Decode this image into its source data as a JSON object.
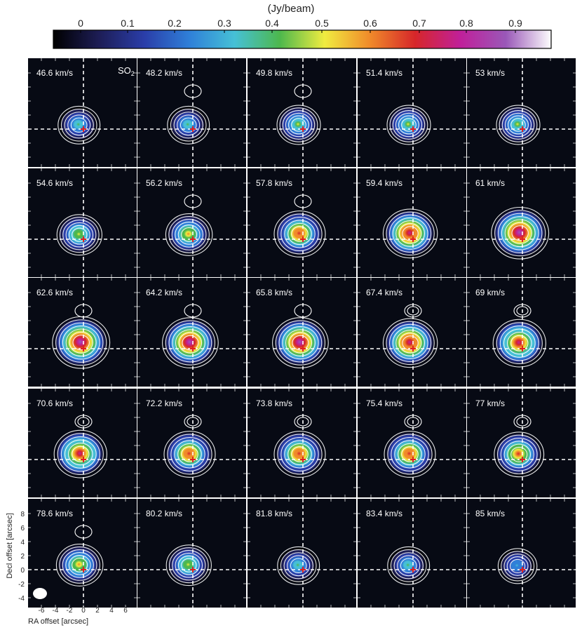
{
  "colorbar": {
    "title": "(Jy/beam)",
    "ticks": [
      "0",
      "0.1",
      "0.2",
      "0.3",
      "0.4",
      "0.5",
      "0.6",
      "0.7",
      "0.8",
      "0.9"
    ],
    "colors": [
      "#000000",
      "#1d1d55",
      "#2a3da8",
      "#2f7fd8",
      "#46c0d6",
      "#4db84d",
      "#f0ec40",
      "#f08a2a",
      "#d6262a",
      "#c0209a",
      "#9a58b8",
      "#fdfdfd"
    ]
  },
  "molecule": "SO",
  "molecule_sub": "2",
  "panels": [
    {
      "label": "46.6 km/s",
      "peak": 0.45,
      "upper": 0
    },
    {
      "label": "48.2 km/s",
      "peak": 0.45,
      "upper": 0.2
    },
    {
      "label": "49.8 km/s",
      "peak": 0.5,
      "upper": 0.3
    },
    {
      "label": "51.4 km/s",
      "peak": 0.5,
      "upper": 0
    },
    {
      "label": "53 km/s",
      "peak": 0.5,
      "upper": 0
    },
    {
      "label": "54.6 km/s",
      "peak": 0.55,
      "upper": 0
    },
    {
      "label": "56.2 km/s",
      "peak": 0.6,
      "upper": 0.2
    },
    {
      "label": "57.8 km/s",
      "peak": 0.75,
      "upper": 0.2
    },
    {
      "label": "59.4 km/s",
      "peak": 0.85,
      "upper": 0
    },
    {
      "label": "61 km/s",
      "peak": 0.95,
      "upper": 0
    },
    {
      "label": "62.6 km/s",
      "peak": 0.95,
      "upper": 0.3
    },
    {
      "label": "64.2 km/s",
      "peak": 0.9,
      "upper": 0.3
    },
    {
      "label": "65.8 km/s",
      "peak": 0.9,
      "upper": 0.3
    },
    {
      "label": "67.4 km/s",
      "peak": 0.85,
      "upper": 0.4
    },
    {
      "label": "69 km/s",
      "peak": 0.8,
      "upper": 0.5
    },
    {
      "label": "70.6 km/s",
      "peak": 0.8,
      "upper": 0.5
    },
    {
      "label": "72.2 km/s",
      "peak": 0.75,
      "upper": 0.5
    },
    {
      "label": "73.8 km/s",
      "peak": 0.75,
      "upper": 0.5
    },
    {
      "label": "75.4 km/s",
      "peak": 0.75,
      "upper": 0.5
    },
    {
      "label": "77 km/s",
      "peak": 0.7,
      "upper": 0.4
    },
    {
      "label": "78.6 km/s",
      "peak": 0.6,
      "upper": 0.3
    },
    {
      "label": "80.2 km/s",
      "peak": 0.55,
      "upper": 0
    },
    {
      "label": "81.8 km/s",
      "peak": 0.45,
      "upper": 0
    },
    {
      "label": "83.4 km/s",
      "peak": 0.45,
      "upper": 0
    },
    {
      "label": "85 km/s",
      "peak": 0.35,
      "upper": 0
    }
  ],
  "axes": {
    "xlabel": "RA offset [arcsec]",
    "ylabel": "Decl offset [arcsec]",
    "xticks": [
      "-6",
      "-4",
      "-2",
      "0",
      "2",
      "4",
      "6"
    ],
    "yticks": [
      "8",
      "6",
      "4",
      "2",
      "0",
      "-2",
      "-4"
    ]
  }
}
